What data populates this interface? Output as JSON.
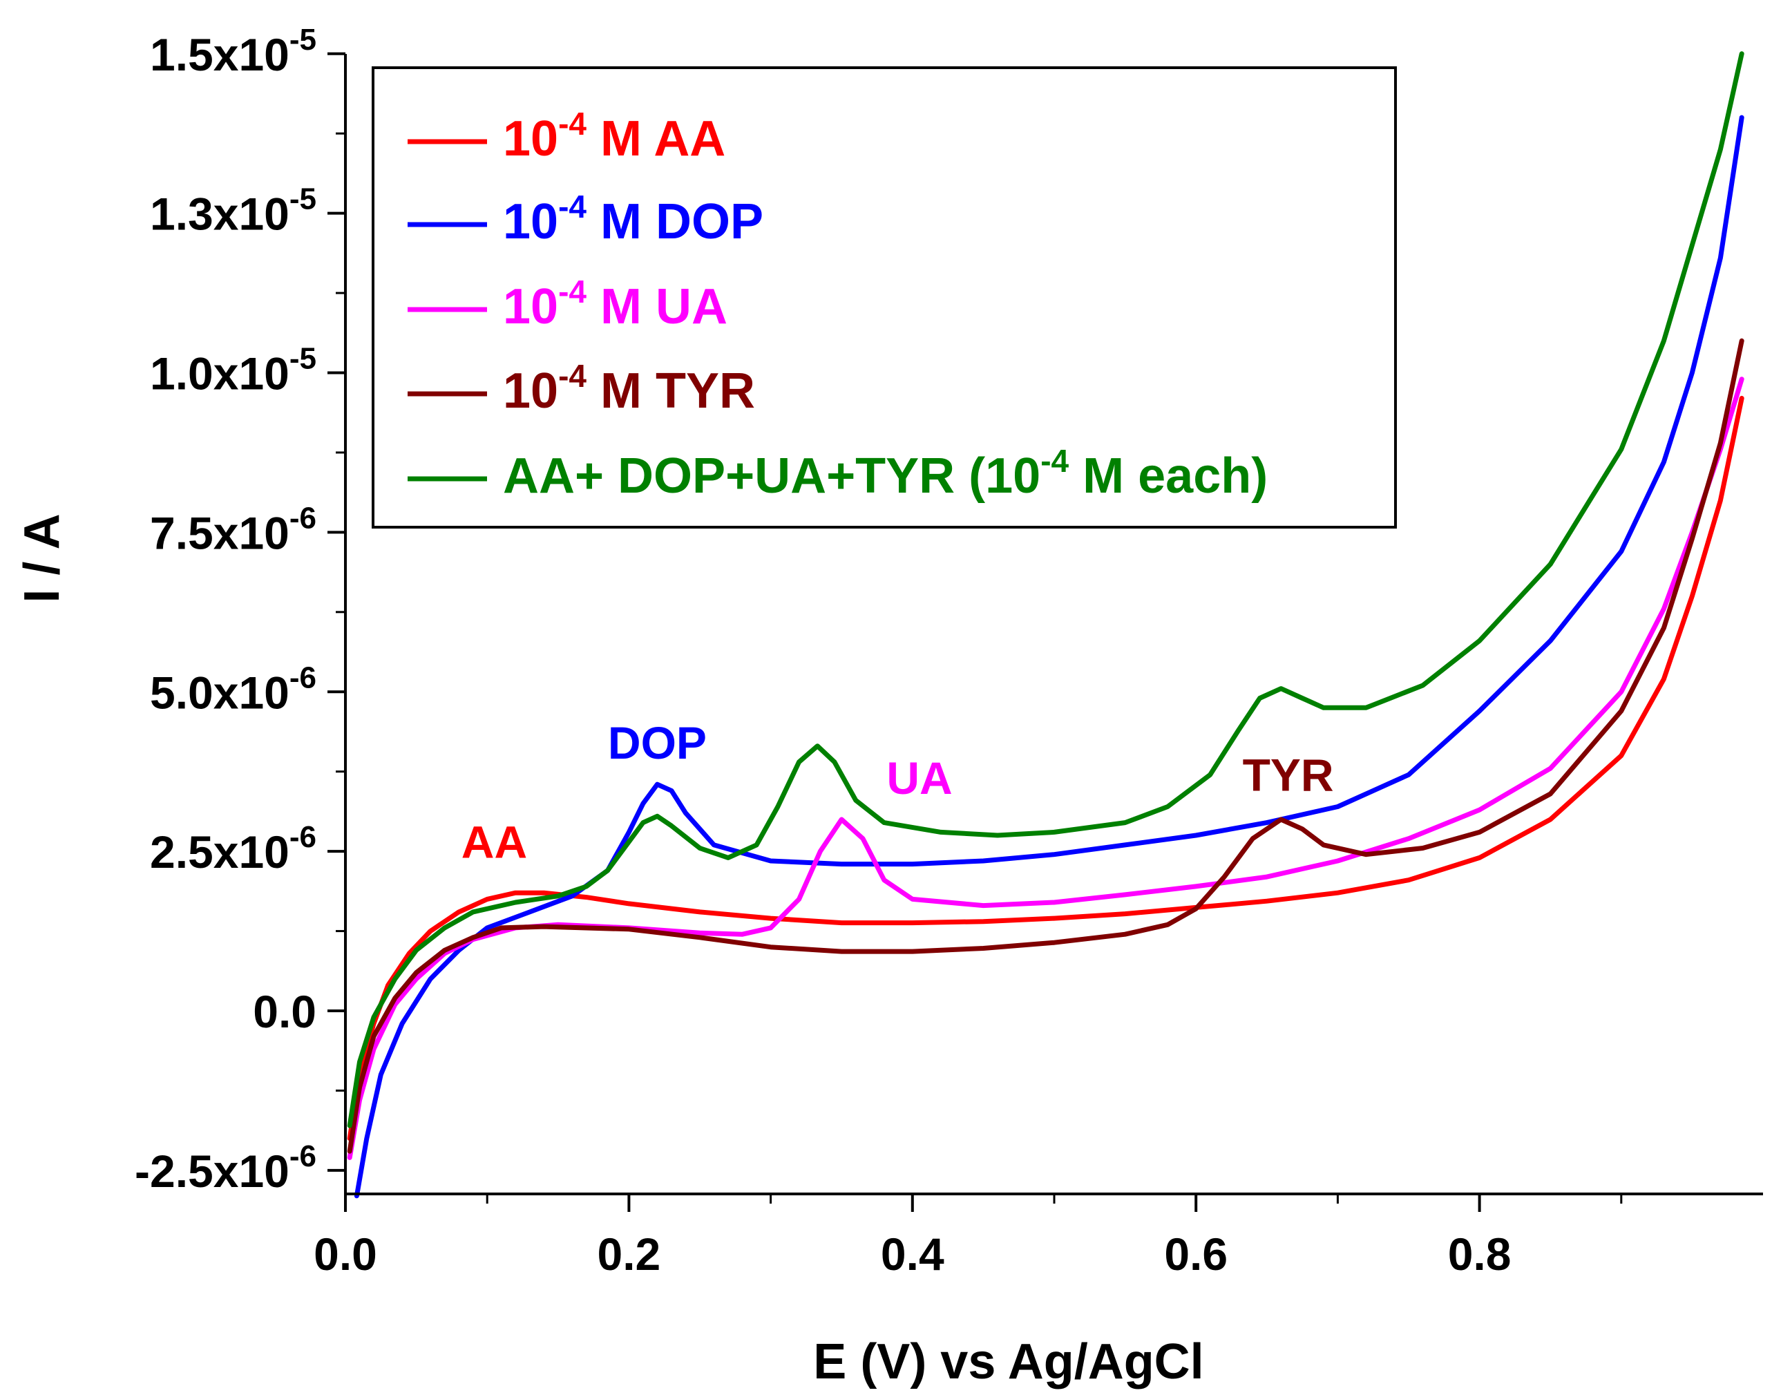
{
  "chart_data": {
    "type": "line",
    "xlabel": "E (V) vs Ag/AgCl",
    "ylabel": "I / A",
    "xlim": [
      0.0,
      1.0
    ],
    "ylim": [
      -2.9e-06,
      1.5e-05
    ],
    "x_ticks": [
      {
        "value": 0.0,
        "label": "0.0"
      },
      {
        "value": 0.2,
        "label": "0.2"
      },
      {
        "value": 0.4,
        "label": "0.4"
      },
      {
        "value": 0.6,
        "label": "0.6"
      },
      {
        "value": 0.8,
        "label": "0.8"
      }
    ],
    "x_minor_ticks": [
      0.1,
      0.3,
      0.5,
      0.7,
      0.9
    ],
    "y_ticks": [
      {
        "value": 1.5e-05,
        "mantissa": "1.5x10",
        "exp": "-5"
      },
      {
        "value": 1.25e-05,
        "mantissa": "1.3x10",
        "exp": "-5"
      },
      {
        "value": 1e-05,
        "mantissa": "1.0x10",
        "exp": "-5"
      },
      {
        "value": 7.5e-06,
        "mantissa": "7.5x10",
        "exp": "-6"
      },
      {
        "value": 5e-06,
        "mantissa": "5.0x10",
        "exp": "-6"
      },
      {
        "value": 2.5e-06,
        "mantissa": "2.5x10",
        "exp": "-6"
      },
      {
        "value": 0.0,
        "mantissa": "0.0",
        "exp": ""
      },
      {
        "value": -2.5e-06,
        "mantissa": "-2.5x10",
        "exp": "-6"
      }
    ],
    "y_minor_ticks": [
      1.375e-05,
      1.125e-05,
      8.75e-06,
      6.25e-06,
      3.75e-06,
      1.25e-06,
      -1.25e-06
    ],
    "series": [
      {
        "name": "10^-4 M AA",
        "legend": {
          "pre": "10",
          "sup": "-4",
          "post": " M AA"
        },
        "color": "#ff0000",
        "points": [
          [
            0.003,
            -2e-06
          ],
          [
            0.01,
            -1e-06
          ],
          [
            0.02,
            -2e-07
          ],
          [
            0.03,
            4e-07
          ],
          [
            0.045,
            9e-07
          ],
          [
            0.06,
            1.25e-06
          ],
          [
            0.08,
            1.55e-06
          ],
          [
            0.1,
            1.75e-06
          ],
          [
            0.12,
            1.85e-06
          ],
          [
            0.14,
            1.85e-06
          ],
          [
            0.17,
            1.78e-06
          ],
          [
            0.2,
            1.68e-06
          ],
          [
            0.25,
            1.55e-06
          ],
          [
            0.3,
            1.45e-06
          ],
          [
            0.35,
            1.38e-06
          ],
          [
            0.4,
            1.38e-06
          ],
          [
            0.45,
            1.4e-06
          ],
          [
            0.5,
            1.45e-06
          ],
          [
            0.55,
            1.52e-06
          ],
          [
            0.6,
            1.62e-06
          ],
          [
            0.65,
            1.72e-06
          ],
          [
            0.7,
            1.85e-06
          ],
          [
            0.75,
            2.05e-06
          ],
          [
            0.8,
            2.4e-06
          ],
          [
            0.85,
            3e-06
          ],
          [
            0.9,
            4e-06
          ],
          [
            0.93,
            5.2e-06
          ],
          [
            0.95,
            6.5e-06
          ],
          [
            0.97,
            8e-06
          ],
          [
            0.985,
            9.6e-06
          ]
        ]
      },
      {
        "name": "10^-4 M DOP",
        "legend": {
          "pre": "10",
          "sup": "-4",
          "post": " M DOP"
        },
        "color": "#0000ff",
        "points": [
          [
            0.008,
            -2.9e-06
          ],
          [
            0.015,
            -2e-06
          ],
          [
            0.025,
            -1e-06
          ],
          [
            0.04,
            -2e-07
          ],
          [
            0.06,
            5e-07
          ],
          [
            0.08,
            9.5e-07
          ],
          [
            0.1,
            1.3e-06
          ],
          [
            0.13,
            1.55e-06
          ],
          [
            0.16,
            1.8e-06
          ],
          [
            0.185,
            2.2e-06
          ],
          [
            0.2,
            2.8e-06
          ],
          [
            0.21,
            3.25e-06
          ],
          [
            0.22,
            3.55e-06
          ],
          [
            0.23,
            3.45e-06
          ],
          [
            0.24,
            3.1e-06
          ],
          [
            0.26,
            2.6e-06
          ],
          [
            0.3,
            2.35e-06
          ],
          [
            0.35,
            2.3e-06
          ],
          [
            0.4,
            2.3e-06
          ],
          [
            0.45,
            2.35e-06
          ],
          [
            0.5,
            2.45e-06
          ],
          [
            0.55,
            2.6e-06
          ],
          [
            0.6,
            2.75e-06
          ],
          [
            0.65,
            2.95e-06
          ],
          [
            0.7,
            3.2e-06
          ],
          [
            0.75,
            3.7e-06
          ],
          [
            0.8,
            4.7e-06
          ],
          [
            0.85,
            5.8e-06
          ],
          [
            0.9,
            7.2e-06
          ],
          [
            0.93,
            8.6e-06
          ],
          [
            0.95,
            1e-05
          ],
          [
            0.97,
            1.18e-05
          ],
          [
            0.985,
            1.4e-05
          ]
        ]
      },
      {
        "name": "10^-4 M UA",
        "legend": {
          "pre": "10",
          "sup": "-4",
          "post": " M UA"
        },
        "color": "#ff00ff",
        "points": [
          [
            0.003,
            -2.3e-06
          ],
          [
            0.01,
            -1.4e-06
          ],
          [
            0.02,
            -6e-07
          ],
          [
            0.035,
            1e-07
          ],
          [
            0.05,
            5e-07
          ],
          [
            0.07,
            9e-07
          ],
          [
            0.09,
            1.12e-06
          ],
          [
            0.12,
            1.3e-06
          ],
          [
            0.15,
            1.35e-06
          ],
          [
            0.2,
            1.3e-06
          ],
          [
            0.25,
            1.22e-06
          ],
          [
            0.28,
            1.2e-06
          ],
          [
            0.3,
            1.3e-06
          ],
          [
            0.32,
            1.75e-06
          ],
          [
            0.335,
            2.5e-06
          ],
          [
            0.35,
            3e-06
          ],
          [
            0.365,
            2.7e-06
          ],
          [
            0.38,
            2.05e-06
          ],
          [
            0.4,
            1.75e-06
          ],
          [
            0.45,
            1.65e-06
          ],
          [
            0.5,
            1.7e-06
          ],
          [
            0.55,
            1.82e-06
          ],
          [
            0.6,
            1.95e-06
          ],
          [
            0.65,
            2.1e-06
          ],
          [
            0.7,
            2.35e-06
          ],
          [
            0.75,
            2.7e-06
          ],
          [
            0.8,
            3.15e-06
          ],
          [
            0.85,
            3.8e-06
          ],
          [
            0.9,
            5e-06
          ],
          [
            0.93,
            6.3e-06
          ],
          [
            0.95,
            7.5e-06
          ],
          [
            0.97,
            8.8e-06
          ],
          [
            0.985,
            9.9e-06
          ]
        ]
      },
      {
        "name": "10^-4 M TYR",
        "legend": {
          "pre": "10",
          "sup": "-4",
          "post": " M TYR"
        },
        "color": "#800000",
        "points": [
          [
            0.003,
            -2.2e-06
          ],
          [
            0.01,
            -1.2e-06
          ],
          [
            0.02,
            -4e-07
          ],
          [
            0.035,
            2e-07
          ],
          [
            0.05,
            6e-07
          ],
          [
            0.07,
            9.5e-07
          ],
          [
            0.09,
            1.15e-06
          ],
          [
            0.11,
            1.3e-06
          ],
          [
            0.14,
            1.32e-06
          ],
          [
            0.2,
            1.28e-06
          ],
          [
            0.25,
            1.15e-06
          ],
          [
            0.3,
            1e-06
          ],
          [
            0.35,
            9.3e-07
          ],
          [
            0.4,
            9.3e-07
          ],
          [
            0.45,
            9.8e-07
          ],
          [
            0.5,
            1.07e-06
          ],
          [
            0.55,
            1.2e-06
          ],
          [
            0.58,
            1.35e-06
          ],
          [
            0.6,
            1.6e-06
          ],
          [
            0.62,
            2.1e-06
          ],
          [
            0.64,
            2.7e-06
          ],
          [
            0.66,
            3e-06
          ],
          [
            0.675,
            2.85e-06
          ],
          [
            0.69,
            2.6e-06
          ],
          [
            0.72,
            2.45e-06
          ],
          [
            0.76,
            2.55e-06
          ],
          [
            0.8,
            2.8e-06
          ],
          [
            0.85,
            3.4e-06
          ],
          [
            0.9,
            4.7e-06
          ],
          [
            0.93,
            6e-06
          ],
          [
            0.95,
            7.4e-06
          ],
          [
            0.97,
            8.9e-06
          ],
          [
            0.985,
            1.05e-05
          ]
        ]
      },
      {
        "name": "AA+ DOP+UA+TYR (10^-4 M each)",
        "legend": {
          "pre": "AA+ DOP+UA+TYR (10",
          "sup": "-4",
          "post": " M each)"
        },
        "color": "#008000",
        "points": [
          [
            0.003,
            -1.8e-06
          ],
          [
            0.01,
            -8e-07
          ],
          [
            0.02,
            -1e-07
          ],
          [
            0.035,
            5e-07
          ],
          [
            0.05,
            9.5e-07
          ],
          [
            0.07,
            1.3e-06
          ],
          [
            0.09,
            1.55e-06
          ],
          [
            0.12,
            1.7e-06
          ],
          [
            0.15,
            1.8e-06
          ],
          [
            0.17,
            1.95e-06
          ],
          [
            0.185,
            2.2e-06
          ],
          [
            0.2,
            2.65e-06
          ],
          [
            0.21,
            2.95e-06
          ],
          [
            0.22,
            3.05e-06
          ],
          [
            0.23,
            2.9e-06
          ],
          [
            0.25,
            2.55e-06
          ],
          [
            0.27,
            2.4e-06
          ],
          [
            0.29,
            2.6e-06
          ],
          [
            0.305,
            3.2e-06
          ],
          [
            0.32,
            3.9e-06
          ],
          [
            0.333,
            4.15e-06
          ],
          [
            0.345,
            3.9e-06
          ],
          [
            0.36,
            3.3e-06
          ],
          [
            0.38,
            2.95e-06
          ],
          [
            0.42,
            2.8e-06
          ],
          [
            0.46,
            2.75e-06
          ],
          [
            0.5,
            2.8e-06
          ],
          [
            0.55,
            2.95e-06
          ],
          [
            0.58,
            3.2e-06
          ],
          [
            0.61,
            3.7e-06
          ],
          [
            0.63,
            4.4e-06
          ],
          [
            0.645,
            4.9e-06
          ],
          [
            0.66,
            5.05e-06
          ],
          [
            0.675,
            4.9e-06
          ],
          [
            0.69,
            4.75e-06
          ],
          [
            0.72,
            4.75e-06
          ],
          [
            0.76,
            5.1e-06
          ],
          [
            0.8,
            5.8e-06
          ],
          [
            0.85,
            7e-06
          ],
          [
            0.9,
            8.8e-06
          ],
          [
            0.93,
            1.05e-05
          ],
          [
            0.95,
            1.2e-05
          ],
          [
            0.97,
            1.35e-05
          ],
          [
            0.985,
            1.5e-05
          ]
        ]
      }
    ],
    "annotations": [
      {
        "text": "AA",
        "x": 0.105,
        "y": 2.4e-06,
        "color": "#ff0000"
      },
      {
        "text": "DOP",
        "x": 0.22,
        "y": 3.95e-06,
        "color": "#0000ff"
      },
      {
        "text": "UA",
        "x": 0.405,
        "y": 3.4e-06,
        "color": "#ff00ff"
      },
      {
        "text": "TYR",
        "x": 0.665,
        "y": 3.45e-06,
        "color": "#800000"
      }
    ]
  }
}
